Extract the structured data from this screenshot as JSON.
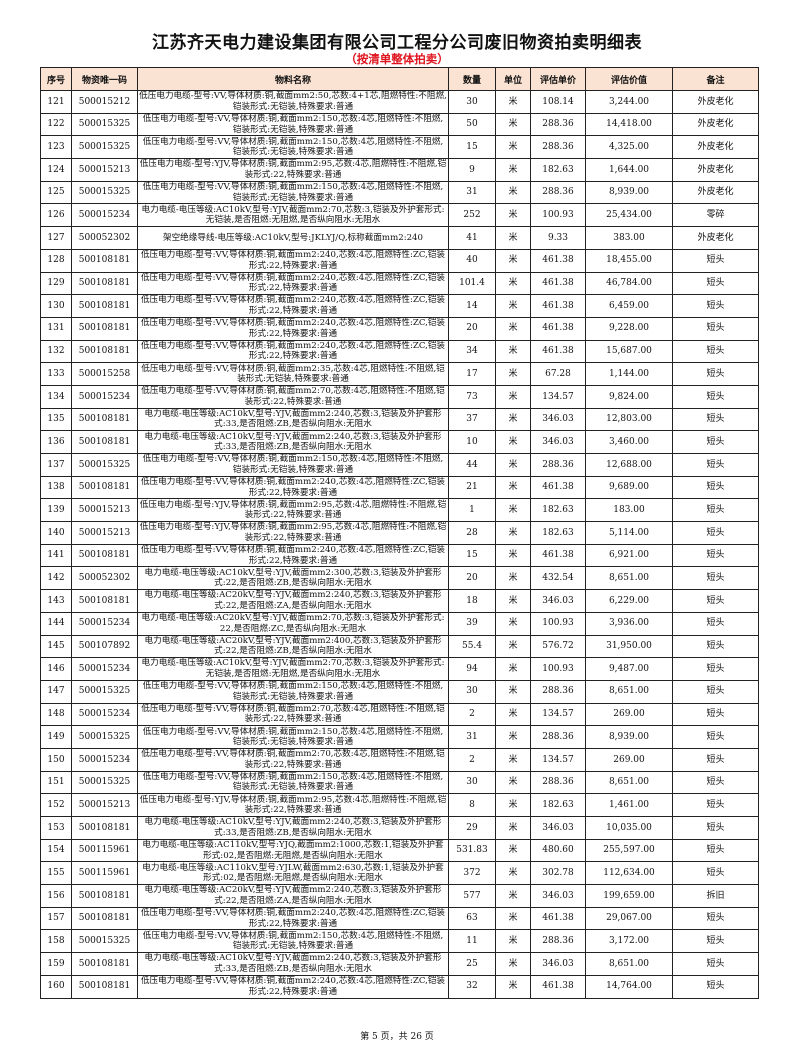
{
  "title": "江苏齐天电力建设集团有限公司工程分公司废旧物资拍卖明细表",
  "subtitle": "（按清单整体拍卖）",
  "header_color": "#fbe3d3",
  "columns": [
    "序号",
    "物资唯一码",
    "物料名称",
    "数量",
    "单位",
    "评估单价",
    "评估价值",
    "备注"
  ],
  "rows": [
    [
      "121",
      "500015212",
      "低压电力电缆-型号:VV,导体材质:铜,截面mm2:50,芯数:4+1芯,阻燃特性:不阻燃,铠装形式:无铠装,特殊要求:普通",
      "30",
      "米",
      "108.14",
      "3,244.00",
      "外皮老化"
    ],
    [
      "122",
      "500015325",
      "低压电力电缆-型号:VV,导体材质:铜,截面mm2:150,芯数:4芯,阻燃特性:不阻燃,铠装形式:无铠装,特殊要求:普通",
      "50",
      "米",
      "288.36",
      "14,418.00",
      "外皮老化"
    ],
    [
      "123",
      "500015325",
      "低压电力电缆-型号:VV,导体材质:铜,截面mm2:150,芯数:4芯,阻燃特性:不阻燃,铠装形式:无铠装,特殊要求:普通",
      "15",
      "米",
      "288.36",
      "4,325.00",
      "外皮老化"
    ],
    [
      "124",
      "500015213",
      "低压电力电缆-型号:YJV,导体材质:铜,截面mm2:95,芯数:4芯,阻燃特性:不阻燃,铠装形式:22,特殊要求:普通",
      "9",
      "米",
      "182.63",
      "1,644.00",
      "外皮老化"
    ],
    [
      "125",
      "500015325",
      "低压电力电缆-型号:VV,导体材质:铜,截面mm2:150,芯数:4芯,阻燃特性:不阻燃,铠装形式:无铠装,特殊要求:普通",
      "31",
      "米",
      "288.36",
      "8,939.00",
      "外皮老化"
    ],
    [
      "126",
      "500015234",
      "电力电缆-电压等级:AC10kV,型号:YJV,截面mm2:70,芯数:3,铠装及外护套形式:无铠装,是否阻燃:无阻燃,是否纵向阻水:无阻水",
      "252",
      "米",
      "100.93",
      "25,434.00",
      "零碎"
    ],
    [
      "127",
      "500052302",
      "架空绝缘导线-电压等级:AC10kV,型号:JKLYJ/Q,标称截面mm2:240",
      "41",
      "米",
      "9.33",
      "383.00",
      "外皮老化"
    ],
    [
      "128",
      "500108181",
      "低压电力电缆-型号:VV,导体材质:铜,截面mm2:240,芯数:4芯,阻燃特性:ZC,铠装形式:22,特殊要求:普通",
      "40",
      "米",
      "461.38",
      "18,455.00",
      "短头"
    ],
    [
      "129",
      "500108181",
      "低压电力电缆-型号:VV,导体材质:铜,截面mm2:240,芯数:4芯,阻燃特性:ZC,铠装形式:22,特殊要求:普通",
      "101.4",
      "米",
      "461.38",
      "46,784.00",
      "短头"
    ],
    [
      "130",
      "500108181",
      "低压电力电缆-型号:VV,导体材质:铜,截面mm2:240,芯数:4芯,阻燃特性:ZC,铠装形式:22,特殊要求:普通",
      "14",
      "米",
      "461.38",
      "6,459.00",
      "短头"
    ],
    [
      "131",
      "500108181",
      "低压电力电缆-型号:VV,导体材质:铜,截面mm2:240,芯数:4芯,阻燃特性:ZC,铠装形式:22,特殊要求:普通",
      "20",
      "米",
      "461.38",
      "9,228.00",
      "短头"
    ],
    [
      "132",
      "500108181",
      "低压电力电缆-型号:VV,导体材质:铜,截面mm2:240,芯数:4芯,阻燃特性:ZC,铠装形式:22,特殊要求:普通",
      "34",
      "米",
      "461.38",
      "15,687.00",
      "短头"
    ],
    [
      "133",
      "500015258",
      "低压电力电缆-型号:VV,导体材质:铜,截面mm2:35,芯数:4芯,阻燃特性:不阻燃,铠装形式:无铠装,特殊要求:普通",
      "17",
      "米",
      "67.28",
      "1,144.00",
      "短头"
    ],
    [
      "134",
      "500015234",
      "低压电力电缆-型号:VV,导体材质:铜,截面mm2:70,芯数:4芯,阻燃特性:不阻燃,铠装形式:22,特殊要求:普通",
      "73",
      "米",
      "134.57",
      "9,824.00",
      "短头"
    ],
    [
      "135",
      "500108181",
      "电力电缆-电压等级:AC10kV,型号:YJV,截面mm2:240,芯数:3,铠装及外护套形式:33,是否阻燃:ZB,是否纵向阻水:无阻水",
      "37",
      "米",
      "346.03",
      "12,803.00",
      "短头"
    ],
    [
      "136",
      "500108181",
      "电力电缆-电压等级:AC10kV,型号:YJV,截面mm2:240,芯数:3,铠装及外护套形式:33,是否阻燃:ZB,是否纵向阻水:无阻水",
      "10",
      "米",
      "346.03",
      "3,460.00",
      "短头"
    ],
    [
      "137",
      "500015325",
      "低压电力电缆-型号:VV,导体材质:铜,截面mm2:150,芯数:4芯,阻燃特性:不阻燃,铠装形式:无铠装,特殊要求:普通",
      "44",
      "米",
      "288.36",
      "12,688.00",
      "短头"
    ],
    [
      "138",
      "500108181",
      "低压电力电缆-型号:VV,导体材质:铜,截面mm2:240,芯数:4芯,阻燃特性:ZC,铠装形式:22,特殊要求:普通",
      "21",
      "米",
      "461.38",
      "9,689.00",
      "短头"
    ],
    [
      "139",
      "500015213",
      "低压电力电缆-型号:YJV,导体材质:铜,截面mm2:95,芯数:4芯,阻燃特性:不阻燃,铠装形式:22,特殊要求:普通",
      "1",
      "米",
      "182.63",
      "183.00",
      "短头"
    ],
    [
      "140",
      "500015213",
      "低压电力电缆-型号:YJV,导体材质:铜,截面mm2:95,芯数:4芯,阻燃特性:不阻燃,铠装形式:22,特殊要求:普通",
      "28",
      "米",
      "182.63",
      "5,114.00",
      "短头"
    ],
    [
      "141",
      "500108181",
      "低压电力电缆-型号:VV,导体材质:铜,截面mm2:240,芯数:4芯,阻燃特性:ZC,铠装形式:22,特殊要求:普通",
      "15",
      "米",
      "461.38",
      "6,921.00",
      "短头"
    ],
    [
      "142",
      "500052302",
      "电力电缆-电压等级:AC10kV,型号:YJV,截面mm2:300,芯数:3,铠装及外护套形式:22,是否阻燃:ZB,是否纵向阻水:无阻水",
      "20",
      "米",
      "432.54",
      "8,651.00",
      "短头"
    ],
    [
      "143",
      "500108181",
      "电力电缆-电压等级:AC20kV,型号:YJV,截面mm2:240,芯数:3,铠装及外护套形式:22,是否阻燃:ZA,是否纵向阻水:无阻水",
      "18",
      "米",
      "346.03",
      "6,229.00",
      "短头"
    ],
    [
      "144",
      "500015234",
      "电力电缆-电压等级:AC20kV,型号:YJV,截面mm2:70,芯数:3,铠装及外护套形式:22,是否阻燃:ZC,是否纵向阻水:无阻水",
      "39",
      "米",
      "100.93",
      "3,936.00",
      "短头"
    ],
    [
      "145",
      "500107892",
      "电力电缆-电压等级:AC20kV,型号:YJV,截面mm2:400,芯数:3,铠装及外护套形式:22,是否阻燃:ZB,是否纵向阻水:无阻水",
      "55.4",
      "米",
      "576.72",
      "31,950.00",
      "短头"
    ],
    [
      "146",
      "500015234",
      "电力电缆-电压等级:AC10kV,型号:YJV,截面mm2:70,芯数:3,铠装及外护套形式:无铠装,是否阻燃:无阻燃,是否纵向阻水:无阻水",
      "94",
      "米",
      "100.93",
      "9,487.00",
      "短头"
    ],
    [
      "147",
      "500015325",
      "低压电力电缆-型号:VV,导体材质:铜,截面mm2:150,芯数:4芯,阻燃特性:不阻燃,铠装形式:无铠装,特殊要求:普通",
      "30",
      "米",
      "288.36",
      "8,651.00",
      "短头"
    ],
    [
      "148",
      "500015234",
      "低压电力电缆-型号:VV,导体材质:铜,截面mm2:70,芯数:4芯,阻燃特性:不阻燃,铠装形式:22,特殊要求:普通",
      "2",
      "米",
      "134.57",
      "269.00",
      "短头"
    ],
    [
      "149",
      "500015325",
      "低压电力电缆-型号:VV,导体材质:铜,截面mm2:150,芯数:4芯,阻燃特性:不阻燃,铠装形式:无铠装,特殊要求:普通",
      "31",
      "米",
      "288.36",
      "8,939.00",
      "短头"
    ],
    [
      "150",
      "500015234",
      "低压电力电缆-型号:VV,导体材质:铜,截面mm2:70,芯数:4芯,阻燃特性:不阻燃,铠装形式:22,特殊要求:普通",
      "2",
      "米",
      "134.57",
      "269.00",
      "短头"
    ],
    [
      "151",
      "500015325",
      "低压电力电缆-型号:VV,导体材质:铜,截面mm2:150,芯数:4芯,阻燃特性:不阻燃,铠装形式:无铠装,特殊要求:普通",
      "30",
      "米",
      "288.36",
      "8,651.00",
      "短头"
    ],
    [
      "152",
      "500015213",
      "低压电力电缆-型号:YJV,导体材质:铜,截面mm2:95,芯数:4芯,阻燃特性:不阻燃,铠装形式:22,特殊要求:普通",
      "8",
      "米",
      "182.63",
      "1,461.00",
      "短头"
    ],
    [
      "153",
      "500108181",
      "电力电缆-电压等级:AC10kV,型号:YJV,截面mm2:240,芯数:3,铠装及外护套形式:33,是否阻燃:ZB,是否纵向阻水:无阻水",
      "29",
      "米",
      "346.03",
      "10,035.00",
      "短头"
    ],
    [
      "154",
      "500115961",
      "电力电缆-电压等级:AC110kV,型号:YJQ,截面mm2:1000,芯数:1,铠装及外护套形式:02,是否阻燃:无阻燃,是否纵向阻水:无阻水",
      "531.83",
      "米",
      "480.60",
      "255,597.00",
      "短头"
    ],
    [
      "155",
      "500115961",
      "电力电缆-电压等级:AC110kV,型号:YJLW,截面mm2:630,芯数:1,铠装及外护套形式:02,是否阻燃:无阻燃,是否纵向阻水:无阻水",
      "372",
      "米",
      "302.78",
      "112,634.00",
      "短头"
    ],
    [
      "156",
      "500108181",
      "电力电缆-电压等级:AC20kV,型号:YJV,截面mm2:240,芯数:3,铠装及外护套形式:22,是否阻燃:ZA,是否纵向阻水:无阻水",
      "577",
      "米",
      "346.03",
      "199,659.00",
      "拆旧"
    ],
    [
      "157",
      "500108181",
      "低压电力电缆-型号:VV,导体材质:铜,截面mm2:240,芯数:4芯,阻燃特性:ZC,铠装形式:22,特殊要求:普通",
      "63",
      "米",
      "461.38",
      "29,067.00",
      "短头"
    ],
    [
      "158",
      "500015325",
      "低压电力电缆-型号:VV,导体材质:铜,截面mm2:150,芯数:4芯,阻燃特性:不阻燃,铠装形式:无铠装,特殊要求:普通",
      "11",
      "米",
      "288.36",
      "3,172.00",
      "短头"
    ],
    [
      "159",
      "500108181",
      "电力电缆-电压等级:AC10kV,型号:YJV,截面mm2:240,芯数:3,铠装及外护套形式:33,是否阻燃:ZB,是否纵向阻水:无阻水",
      "25",
      "米",
      "346.03",
      "8,651.00",
      "短头"
    ],
    [
      "160",
      "500108181",
      "低压电力电缆-型号:VV,导体材质:铜,截面mm2:240,芯数:4芯,阻燃特性:ZC,铠装形式:22,特殊要求:普通",
      "32",
      "米",
      "461.38",
      "14,764.00",
      "短头"
    ]
  ],
  "footer": "第 5 页，共 26 页"
}
